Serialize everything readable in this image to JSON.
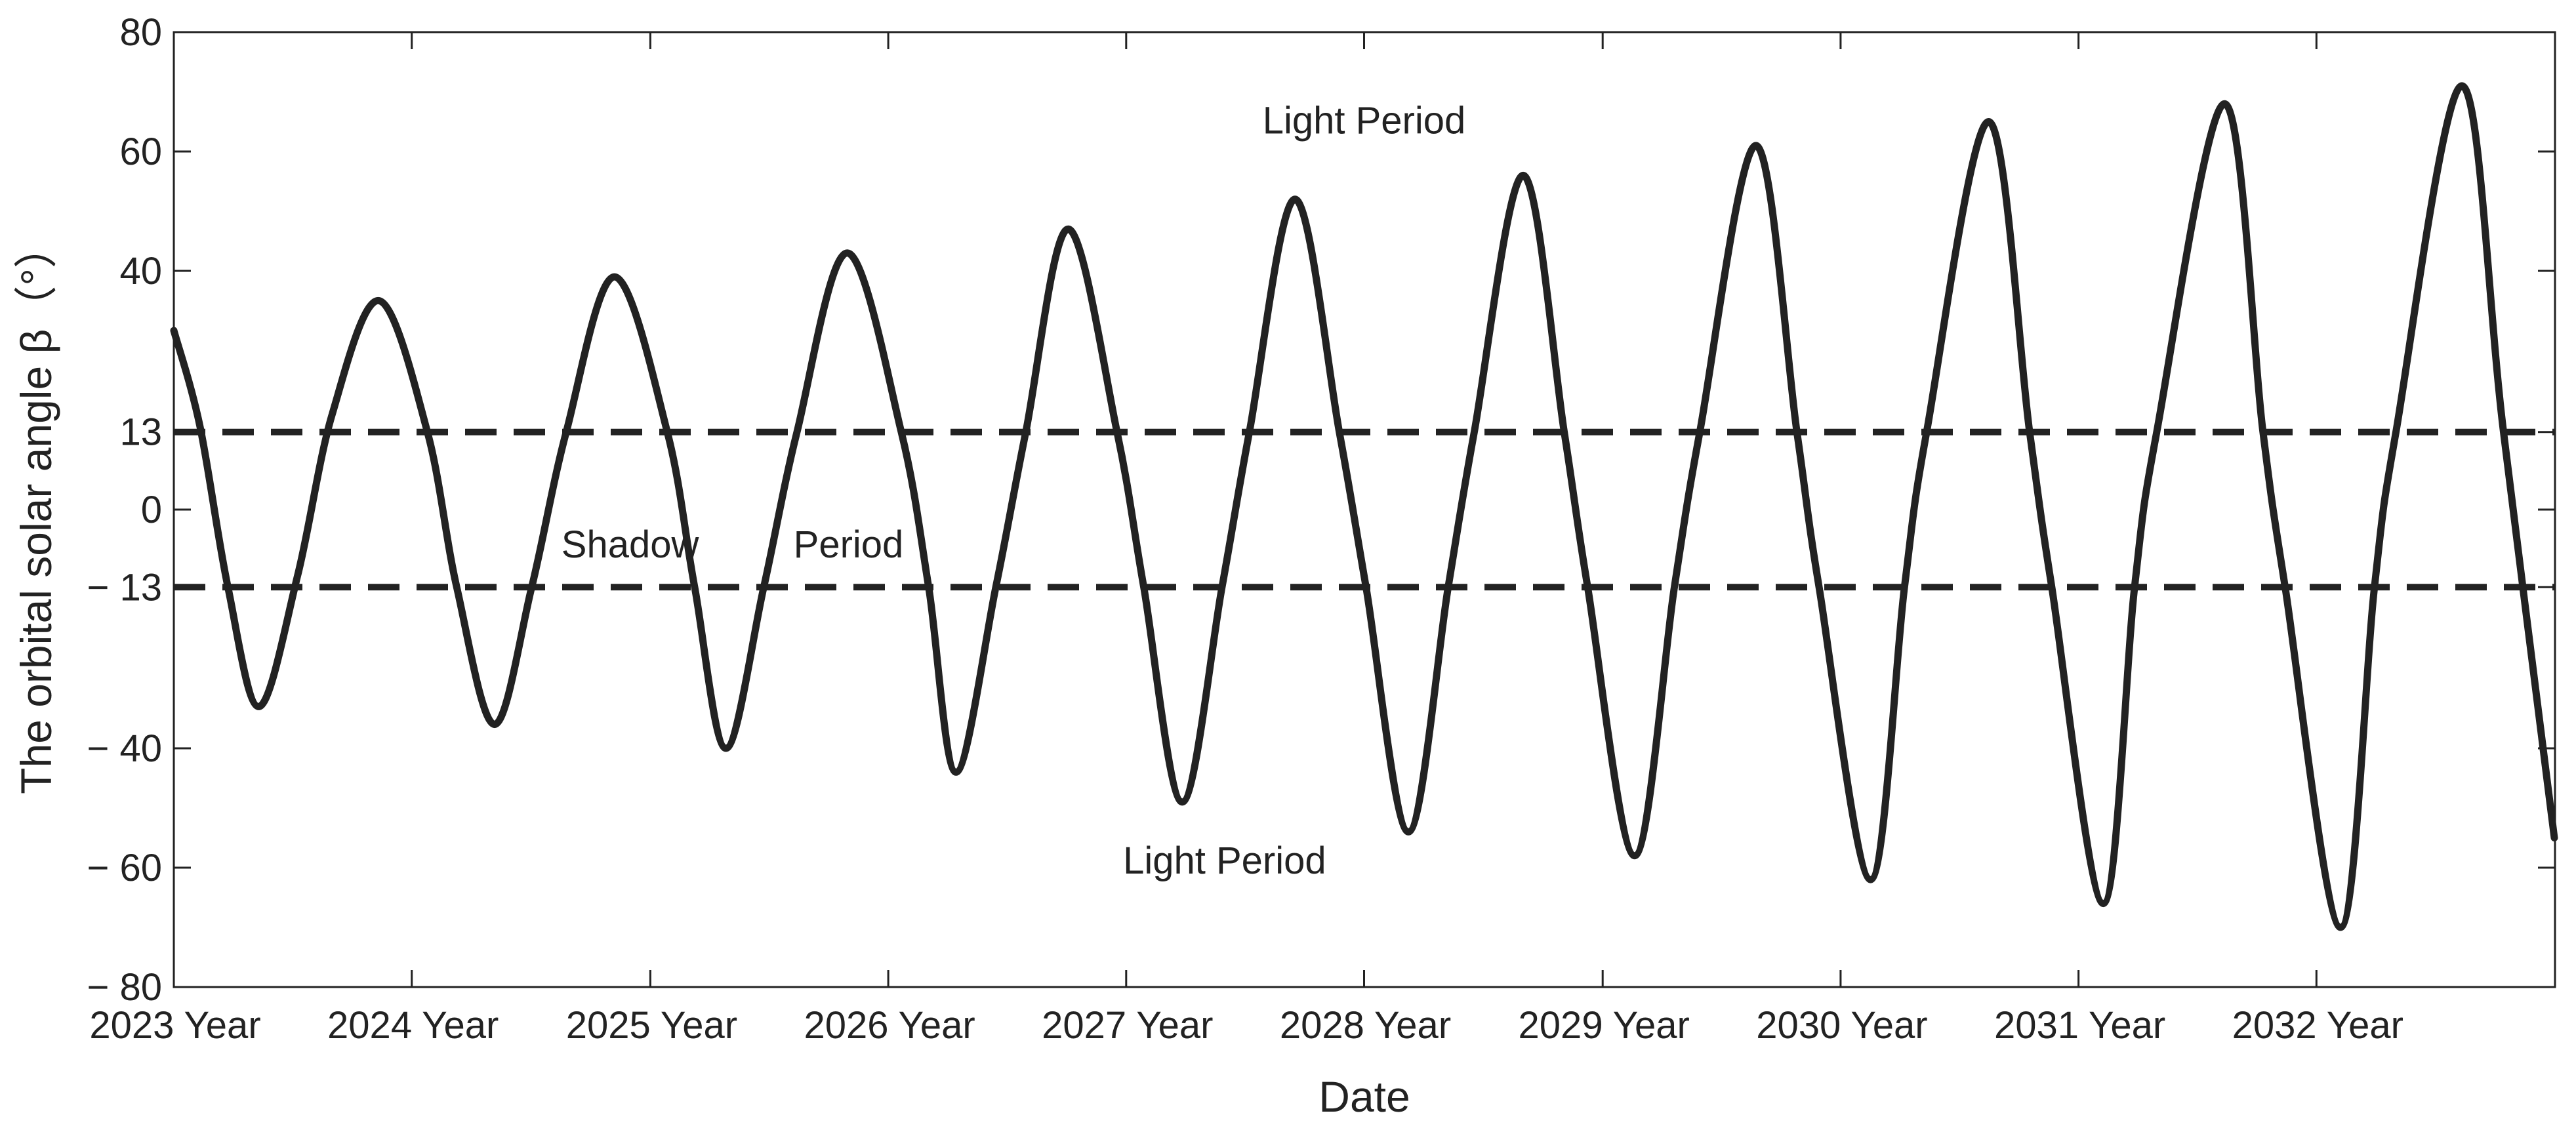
{
  "chart_data": {
    "type": "line",
    "xlabel": "Date",
    "ylabel": "The orbital solar angle β（°）",
    "xlim": [
      "2023-01-01",
      "2033-01-01"
    ],
    "ylim": [
      -80,
      80
    ],
    "yticks": [
      80,
      60,
      40,
      13,
      0,
      -13,
      -40,
      -60,
      -80
    ],
    "ytick_labels": [
      "80",
      "60",
      "40",
      "13",
      "0",
      "− 13",
      "− 40",
      "− 60",
      "− 80"
    ],
    "xticks": [
      "2023-01-01",
      "2024-01-01",
      "2025-01-01",
      "2026-01-01",
      "2027-01-01",
      "2028-01-01",
      "2029-01-01",
      "2030-01-01",
      "2031-01-01",
      "2032-01-01"
    ],
    "xtick_labels": [
      "2023 Year",
      "2024 Year",
      "2025 Year",
      "2026 Year",
      "2027 Year",
      "2028 Year",
      "2029 Year",
      "2030 Year",
      "2031 Year",
      "2032 Year"
    ],
    "grid": false,
    "series": [
      {
        "style": "solid",
        "color": "#222222",
        "points": [
          [
            "2023-01-01",
            30
          ],
          [
            "2023-02-10",
            14
          ],
          [
            "2023-03-25",
            -13
          ],
          [
            "2023-05-12",
            -33
          ],
          [
            "2023-07-10",
            -11
          ],
          [
            "2023-09-01",
            16
          ],
          [
            "2023-11-12",
            35
          ],
          [
            "2024-01-25",
            13
          ],
          [
            "2024-03-10",
            -13
          ],
          [
            "2024-05-07",
            -36
          ],
          [
            "2024-07-03",
            -13
          ],
          [
            "2024-08-25",
            13
          ],
          [
            "2024-11-07",
            39
          ],
          [
            "2025-01-27",
            13
          ],
          [
            "2025-03-10",
            -13
          ],
          [
            "2025-04-27",
            -40
          ],
          [
            "2025-06-24",
            -13
          ],
          [
            "2025-08-14",
            13
          ],
          [
            "2025-10-30",
            43
          ],
          [
            "2026-01-21",
            13
          ],
          [
            "2026-03-04",
            -13
          ],
          [
            "2026-04-15",
            -44
          ],
          [
            "2026-06-15",
            -13
          ],
          [
            "2026-07-31",
            13
          ],
          [
            "2026-10-04",
            47
          ],
          [
            "2026-12-18",
            13
          ],
          [
            "2027-01-28",
            -13
          ],
          [
            "2027-03-28",
            -49
          ],
          [
            "2027-05-28",
            -13
          ],
          [
            "2027-07-09",
            13
          ],
          [
            "2027-09-17",
            52
          ],
          [
            "2027-11-24",
            13
          ],
          [
            "2028-01-04",
            -13
          ],
          [
            "2028-03-09",
            -54
          ],
          [
            "2028-05-09",
            -13
          ],
          [
            "2028-06-18",
            13
          ],
          [
            "2028-09-01",
            56
          ],
          [
            "2028-11-03",
            13
          ],
          [
            "2028-12-09",
            -13
          ],
          [
            "2029-02-19",
            -58
          ],
          [
            "2029-04-21",
            -13
          ],
          [
            "2029-05-30",
            13
          ],
          [
            "2029-08-24",
            61
          ],
          [
            "2029-10-26",
            13
          ],
          [
            "2029-11-29",
            -13
          ],
          [
            "2030-02-16",
            -62
          ],
          [
            "2030-04-09",
            -13
          ],
          [
            "2030-05-13",
            13
          ],
          [
            "2030-08-16",
            65
          ],
          [
            "2030-10-18",
            13
          ],
          [
            "2030-11-21",
            -13
          ],
          [
            "2031-02-08",
            -66
          ],
          [
            "2031-03-28",
            -13
          ],
          [
            "2031-05-01",
            13
          ],
          [
            "2031-08-13",
            68
          ],
          [
            "2031-10-11",
            13
          ],
          [
            "2031-11-14",
            -13
          ],
          [
            "2032-02-07",
            -70
          ],
          [
            "2032-03-30",
            -13
          ],
          [
            "2032-05-02",
            13
          ],
          [
            "2032-08-11",
            71
          ],
          [
            "2032-10-14",
            13
          ],
          [
            "2032-12-31",
            -55
          ]
        ]
      }
    ],
    "reference_lines": [
      {
        "y": 13,
        "style": "dashed"
      },
      {
        "y": -13,
        "style": "dashed"
      }
    ],
    "annotations": [
      {
        "text": "Light Period",
        "x": "2028-01-01",
        "y": 63
      },
      {
        "text": "Light Period",
        "x": "2027-06-01",
        "y": -61
      },
      {
        "text": "Shadow",
        "x": "2024-12-01",
        "y": -8
      },
      {
        "text": "Period",
        "x": "2025-11-01",
        "y": -8
      }
    ]
  }
}
